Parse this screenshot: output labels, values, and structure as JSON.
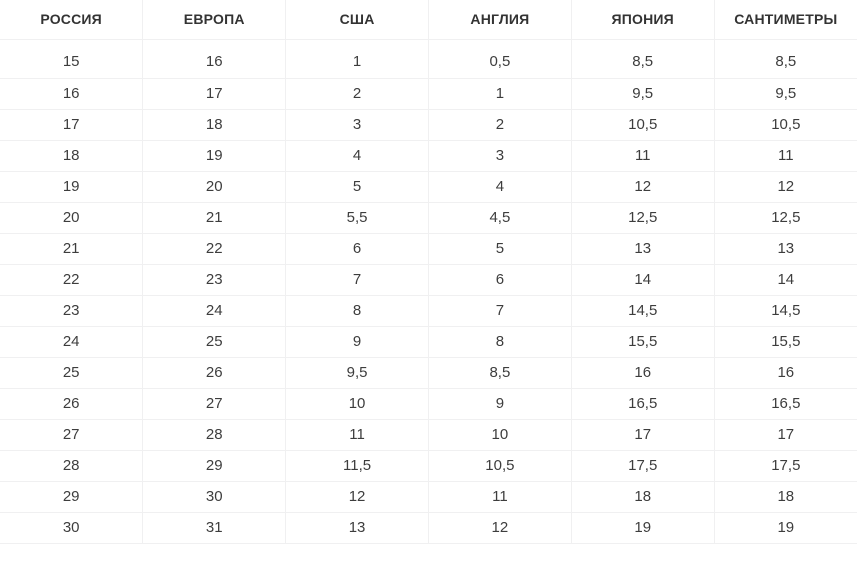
{
  "colors": {
    "background": "#ffffff",
    "border": "#f0f0f1",
    "header_text": "#333333",
    "cell_text": "#3d3d3d"
  },
  "chart_data": {
    "type": "table",
    "title": "",
    "columns": [
      "РОССИЯ",
      "ЕВРОПА",
      "США",
      "АНГЛИЯ",
      "ЯПОНИЯ",
      "САНТИМЕТРЫ"
    ],
    "rows": [
      [
        "15",
        "16",
        "1",
        "0,5",
        "8,5",
        "8,5"
      ],
      [
        "16",
        "17",
        "2",
        "1",
        "9,5",
        "9,5"
      ],
      [
        "17",
        "18",
        "3",
        "2",
        "10,5",
        "10,5"
      ],
      [
        "18",
        "19",
        "4",
        "3",
        "11",
        "11"
      ],
      [
        "19",
        "20",
        "5",
        "4",
        "12",
        "12"
      ],
      [
        "20",
        "21",
        "5,5",
        "4,5",
        "12,5",
        "12,5"
      ],
      [
        "21",
        "22",
        "6",
        "5",
        "13",
        "13"
      ],
      [
        "22",
        "23",
        "7",
        "6",
        "14",
        "14"
      ],
      [
        "23",
        "24",
        "8",
        "7",
        "14,5",
        "14,5"
      ],
      [
        "24",
        "25",
        "9",
        "8",
        "15,5",
        "15,5"
      ],
      [
        "25",
        "26",
        "9,5",
        "8,5",
        "16",
        "16"
      ],
      [
        "26",
        "27",
        "10",
        "9",
        "16,5",
        "16,5"
      ],
      [
        "27",
        "28",
        "11",
        "10",
        "17",
        "17"
      ],
      [
        "28",
        "29",
        "11,5",
        "10,5",
        "17,5",
        "17,5"
      ],
      [
        "29",
        "30",
        "12",
        "11",
        "18",
        "18"
      ],
      [
        "30",
        "31",
        "13",
        "12",
        "19",
        "19"
      ]
    ]
  }
}
